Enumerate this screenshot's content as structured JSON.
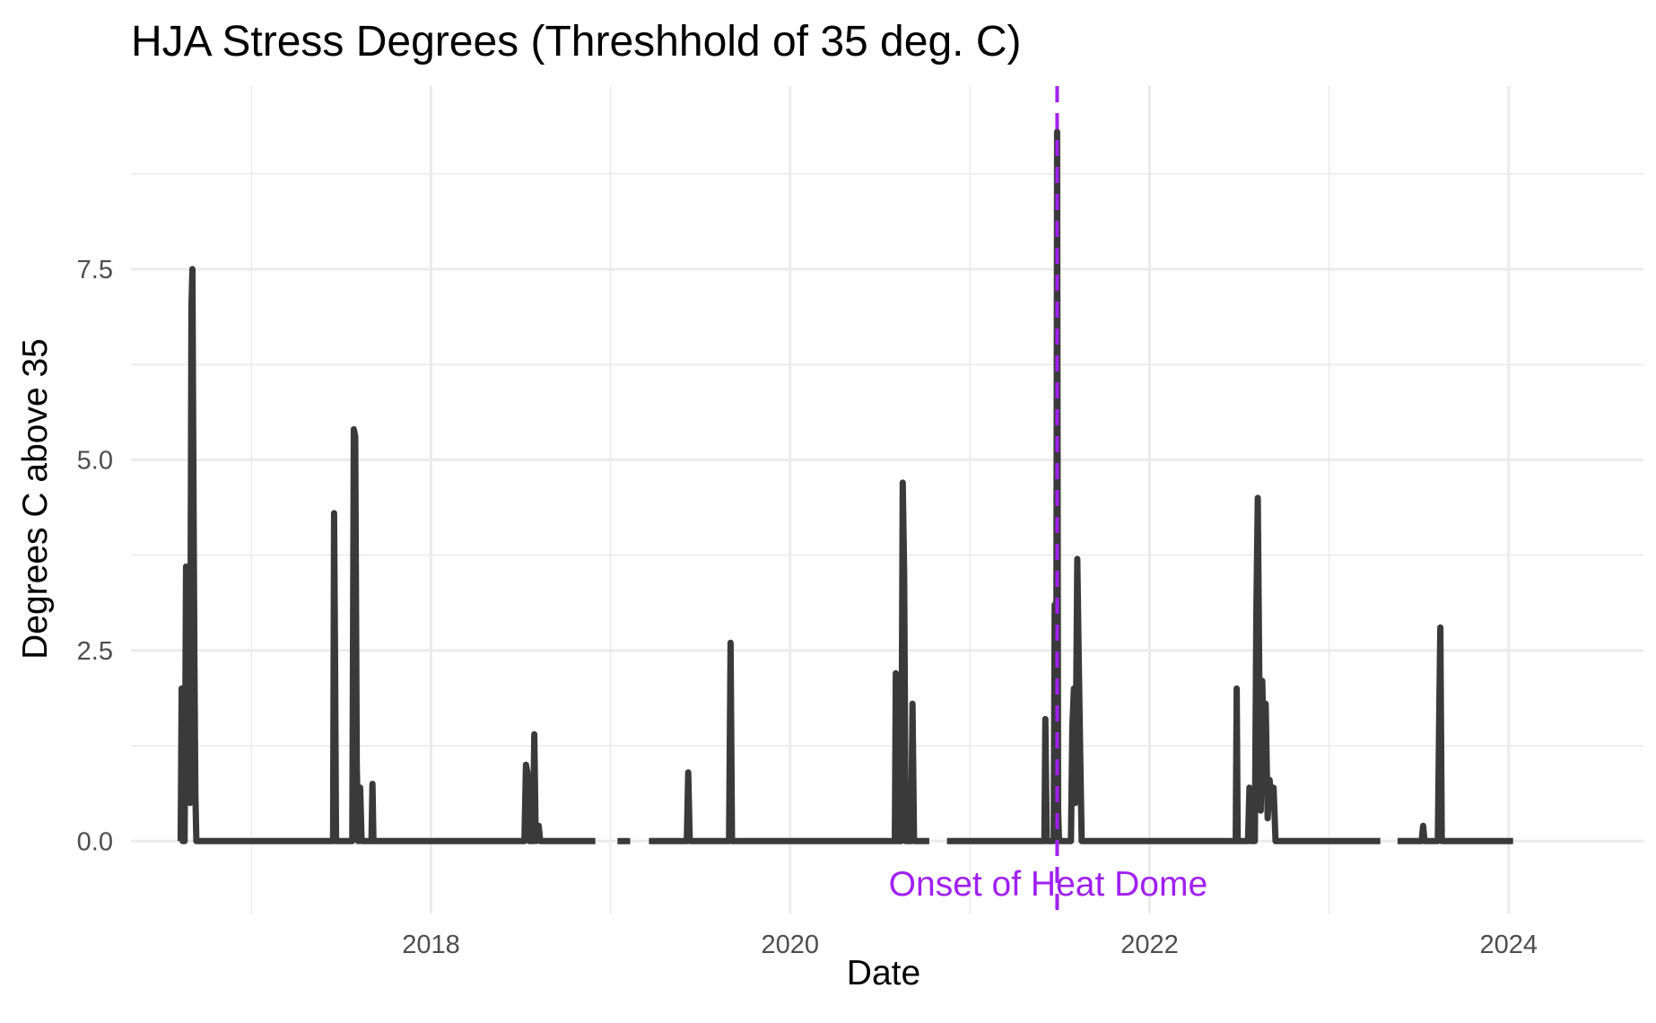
{
  "chart_data": {
    "type": "line",
    "title": "HJA Stress Degrees (Threshhold of 35 deg. C)",
    "xlabel": "Date",
    "ylabel": "Degrees C above 35",
    "x_axis_type": "date",
    "xlim": [
      "2016-05-01",
      "2024-10-01"
    ],
    "ylim": [
      -0.95,
      9.9
    ],
    "x_ticks": [
      "2018",
      "2020",
      "2022",
      "2024"
    ],
    "y_ticks": [
      "0.0",
      "2.5",
      "5.0",
      "7.5"
    ],
    "grid": true,
    "legend": "none",
    "series": [
      {
        "color": "#3a3a3a",
        "points": [
          [
            "2016-08-10",
            0
          ],
          [
            "2016-08-12",
            2.0
          ],
          [
            "2016-08-14",
            0
          ],
          [
            "2016-08-18",
            0
          ],
          [
            "2016-08-21",
            3.6
          ],
          [
            "2016-08-24",
            1.2
          ],
          [
            "2016-08-27",
            3.4
          ],
          [
            "2016-08-29",
            0.5
          ],
          [
            "2016-09-01",
            7.0
          ],
          [
            "2016-09-03",
            7.5
          ],
          [
            "2016-09-05",
            4.8
          ],
          [
            "2016-09-07",
            2.4
          ],
          [
            "2016-09-09",
            0.6
          ],
          [
            "2016-09-11",
            0
          ],
          [
            "2017-06-16",
            0
          ],
          [
            "2017-06-18",
            4.3
          ],
          [
            "2017-06-20",
            2.4
          ],
          [
            "2017-06-22",
            0
          ],
          [
            "2017-07-25",
            0
          ],
          [
            "2017-07-28",
            5.4
          ],
          [
            "2017-07-31",
            5.3
          ],
          [
            "2017-08-03",
            1.0
          ],
          [
            "2017-08-06",
            0
          ],
          [
            "2017-08-10",
            0.7
          ],
          [
            "2017-08-13",
            0
          ],
          [
            "2017-09-02",
            0
          ],
          [
            "2017-09-04",
            0.75
          ],
          [
            "2017-09-06",
            0
          ],
          [
            "2018-07-10",
            0
          ],
          [
            "2018-07-13",
            1.0
          ],
          [
            "2018-07-16",
            0.9
          ],
          [
            "2018-07-20",
            0
          ],
          [
            "2018-07-27",
            0
          ],
          [
            "2018-07-30",
            1.4
          ],
          [
            "2018-08-02",
            0
          ],
          [
            "2018-08-08",
            0.2
          ],
          [
            "2018-08-11",
            0
          ],
          [
            "2018-12-01",
            0
          ],
          [
            "2019-01-15",
            0
          ],
          [
            "2019-02-10",
            0
          ],
          [
            "2019-03-20",
            0
          ],
          [
            "2019-06-05",
            0
          ],
          [
            "2019-06-08",
            0.9
          ],
          [
            "2019-06-11",
            0
          ],
          [
            "2019-08-30",
            0
          ],
          [
            "2019-09-02",
            2.6
          ],
          [
            "2019-09-05",
            0
          ],
          [
            "2020-08-01",
            0
          ],
          [
            "2020-08-03",
            2.2
          ],
          [
            "2020-08-05",
            0
          ],
          [
            "2020-08-14",
            0
          ],
          [
            "2020-08-17",
            4.7
          ],
          [
            "2020-08-20",
            3.5
          ],
          [
            "2020-08-23",
            0
          ],
          [
            "2020-09-03",
            0
          ],
          [
            "2020-09-06",
            1.8
          ],
          [
            "2020-09-09",
            0
          ],
          [
            "2020-10-10",
            0
          ],
          [
            "2020-11-15",
            0
          ],
          [
            "2021-06-01",
            0
          ],
          [
            "2021-06-03",
            1.6
          ],
          [
            "2021-06-06",
            0
          ],
          [
            "2021-06-20",
            0
          ],
          [
            "2021-06-22",
            3.1
          ],
          [
            "2021-06-25",
            0.3
          ],
          [
            "2021-06-27",
            9.3
          ],
          [
            "2021-06-29",
            0.4
          ],
          [
            "2021-07-01",
            0
          ],
          [
            "2021-07-25",
            0
          ],
          [
            "2021-07-28",
            1.5
          ],
          [
            "2021-07-31",
            2.0
          ],
          [
            "2021-08-03",
            0.5
          ],
          [
            "2021-08-07",
            3.7
          ],
          [
            "2021-08-10",
            2.3
          ],
          [
            "2021-08-13",
            1.1
          ],
          [
            "2021-08-16",
            0
          ],
          [
            "2022-06-25",
            0
          ],
          [
            "2022-06-27",
            2.0
          ],
          [
            "2022-06-29",
            0
          ],
          [
            "2022-07-20",
            0
          ],
          [
            "2022-07-23",
            0.7
          ],
          [
            "2022-07-26",
            0
          ],
          [
            "2022-08-03",
            0
          ],
          [
            "2022-08-06",
            3.0
          ],
          [
            "2022-08-09",
            4.5
          ],
          [
            "2022-08-12",
            2.1
          ],
          [
            "2022-08-15",
            0.4
          ],
          [
            "2022-08-18",
            2.1
          ],
          [
            "2022-08-21",
            1.2
          ],
          [
            "2022-08-25",
            1.8
          ],
          [
            "2022-08-29",
            0.3
          ],
          [
            "2022-09-02",
            0.8
          ],
          [
            "2022-09-06",
            0.5
          ],
          [
            "2022-09-10",
            0.7
          ],
          [
            "2022-09-14",
            0
          ],
          [
            "2023-04-15",
            0
          ],
          [
            "2023-05-20",
            0
          ],
          [
            "2023-07-08",
            0
          ],
          [
            "2023-07-11",
            0.2
          ],
          [
            "2023-07-14",
            0
          ],
          [
            "2023-08-10",
            0
          ],
          [
            "2023-08-13",
            1.8
          ],
          [
            "2023-08-15",
            2.8
          ],
          [
            "2023-08-18",
            0
          ],
          [
            "2024-01-10",
            0
          ],
          [
            "2024-03-10",
            0
          ]
        ]
      }
    ],
    "gaps": [
      [
        "2018-12-01",
        "2019-01-15"
      ],
      [
        "2019-02-10",
        "2019-03-20"
      ],
      [
        "2020-10-10",
        "2020-11-15"
      ],
      [
        "2023-04-15",
        "2023-05-20"
      ],
      [
        "2024-01-10",
        "2024-03-10"
      ]
    ],
    "reference_line": {
      "x": "2021-06-27",
      "color": "#a020f0",
      "style": "dashed",
      "label": "Onset of Heat Dome",
      "label_y": -0.55
    }
  }
}
